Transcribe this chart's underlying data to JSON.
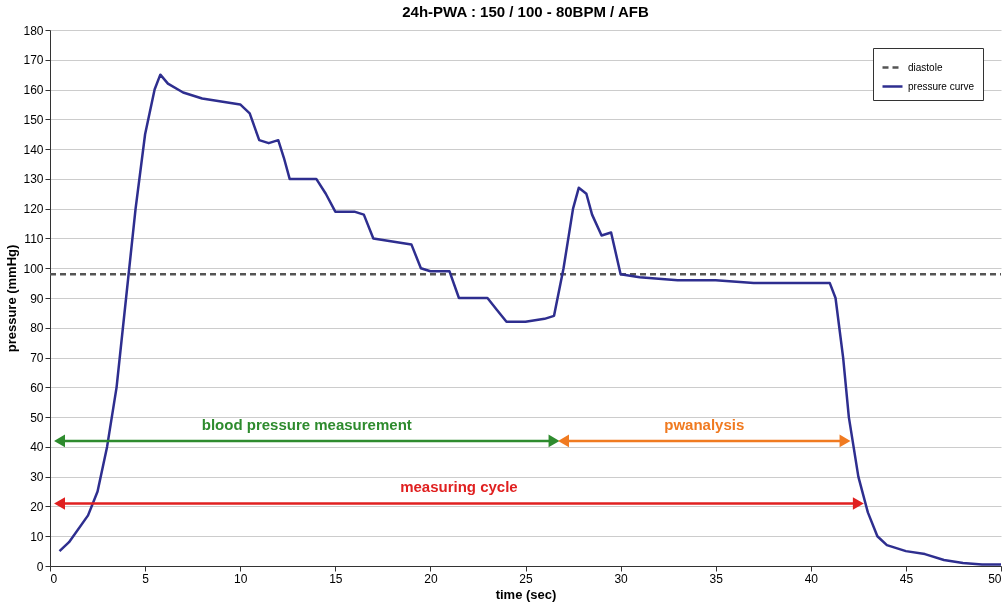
{
  "chart_data": {
    "type": "line",
    "title": "24h-PWA : 150 / 100 - 80BPM / AFB",
    "xlabel": "time (sec)",
    "ylabel": "pressure (mmHg)",
    "xlim": [
      0,
      50
    ],
    "xticks": [
      0,
      5,
      10,
      15,
      20,
      25,
      30,
      35,
      40,
      45,
      50
    ],
    "ylim": [
      0,
      180
    ],
    "yticks": [
      0,
      10,
      20,
      30,
      40,
      50,
      60,
      70,
      80,
      90,
      100,
      110,
      120,
      130,
      140,
      150,
      160,
      170,
      180
    ],
    "grid": "y",
    "legend": "top right",
    "series": [
      {
        "name": "diastole",
        "color": "#555555",
        "line_style": "dashed",
        "x": [
          0,
          50
        ],
        "values": [
          98,
          98
        ]
      },
      {
        "name": "pressure curve",
        "color": "#2e2e8f",
        "line_style": "solid",
        "x": [
          0.5,
          1,
          2,
          2.5,
          3,
          3.5,
          4,
          4.5,
          5,
          5.5,
          5.8,
          6.2,
          7,
          8,
          9,
          10,
          10.5,
          11,
          11.5,
          12,
          12.3,
          12.6,
          14,
          14.5,
          15,
          16,
          16.5,
          17,
          18,
          19,
          19.5,
          20,
          21,
          21.5,
          23,
          23.5,
          24,
          25,
          26,
          26.5,
          27,
          27.5,
          27.8,
          28.2,
          28.5,
          29,
          29.5,
          30,
          31,
          33,
          35,
          37,
          39,
          41,
          41.3,
          41.7,
          42,
          42.5,
          43,
          43.5,
          44,
          45,
          46,
          47,
          48,
          49,
          50
        ],
        "values": [
          5,
          8,
          17,
          25,
          40,
          60,
          90,
          120,
          145,
          160,
          165,
          162,
          159,
          157,
          156,
          155,
          152,
          143,
          142,
          143,
          137,
          130,
          130,
          125,
          119,
          119,
          118,
          110,
          109,
          108,
          100,
          99,
          99,
          90,
          90,
          86,
          82,
          82,
          83,
          84,
          100,
          120,
          127,
          125,
          118,
          111,
          112,
          98,
          97,
          96,
          96,
          95,
          95,
          95,
          90,
          70,
          50,
          30,
          18,
          10,
          7,
          5,
          4,
          2,
          1,
          0.5,
          0.5
        ]
      },
      {
        "color": "#2e8b2e",
        "line_style": "solid",
        "marker": "triangle",
        "x": [
          0.5,
          26.5
        ],
        "values": [
          42,
          42
        ]
      },
      {
        "color": "#f07a20",
        "line_style": "solid",
        "marker": "triangle",
        "x": [
          27,
          41.8
        ],
        "values": [
          42,
          42
        ]
      },
      {
        "color": "#e02020",
        "line_style": "solid",
        "marker": "triangle",
        "x": [
          0.5,
          42.5
        ],
        "values": [
          21,
          21
        ]
      }
    ],
    "annotations": [
      "blood pressure measurement",
      "pwanalysis",
      "measuring cycle"
    ]
  }
}
